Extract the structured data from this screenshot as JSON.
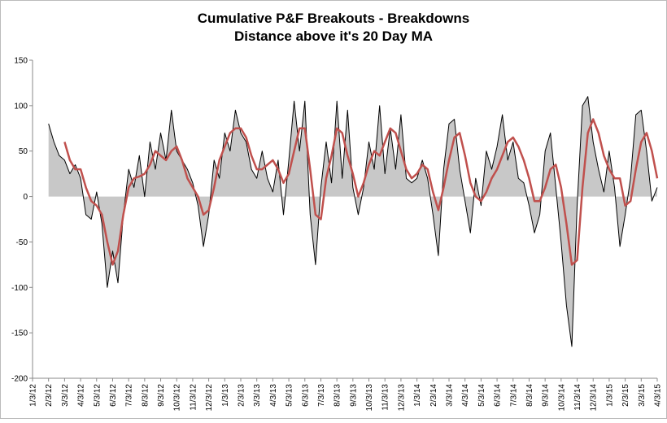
{
  "chart_data": {
    "type": "area-line",
    "title": "Cumulative P&F Breakouts - Breakdowns",
    "subtitle": "Distance above it's 20 Day MA",
    "categories": [
      "1/3/12",
      null,
      null,
      "2/3/12",
      null,
      null,
      "3/3/12",
      null,
      null,
      "4/3/12",
      null,
      null,
      "5/3/12",
      null,
      null,
      "6/3/12",
      null,
      null,
      "7/3/12",
      null,
      null,
      "8/3/12",
      null,
      null,
      "9/3/12",
      null,
      null,
      "10/3/12",
      null,
      null,
      "11/3/12",
      null,
      null,
      "12/3/12",
      null,
      null,
      "1/3/13",
      null,
      null,
      "2/3/13",
      null,
      null,
      "3/3/13",
      null,
      null,
      "4/3/13",
      null,
      null,
      "5/3/13",
      null,
      null,
      "6/3/13",
      null,
      null,
      "7/3/13",
      null,
      null,
      "8/3/13",
      null,
      null,
      "9/3/13",
      null,
      null,
      "10/3/13",
      null,
      null,
      "11/3/13",
      null,
      null,
      "12/3/13",
      null,
      null,
      "1/3/14",
      null,
      null,
      "2/3/14",
      null,
      null,
      "3/3/14",
      null,
      null,
      "4/3/14",
      null,
      null,
      "5/3/14",
      null,
      null,
      "6/3/14",
      null,
      null,
      "7/3/14",
      null,
      null,
      "8/3/14",
      null,
      null,
      "9/3/14",
      null,
      null,
      "10/3/14",
      null,
      null,
      "11/3/14",
      null,
      null,
      "12/3/14",
      null,
      null,
      "1/3/15",
      null,
      null,
      "2/3/15",
      null,
      null,
      "3/3/15",
      null,
      null,
      "4/3/15"
    ],
    "series": [
      {
        "color": "#000000",
        "fill": "#c8c8c8",
        "values": [
          null,
          null,
          null,
          80,
          60,
          45,
          40,
          25,
          35,
          20,
          -20,
          -25,
          5,
          -30,
          -100,
          -60,
          -95,
          -20,
          30,
          10,
          45,
          0,
          60,
          30,
          70,
          40,
          95,
          50,
          40,
          30,
          15,
          -10,
          -55,
          -20,
          40,
          20,
          70,
          50,
          95,
          70,
          60,
          30,
          20,
          50,
          20,
          5,
          40,
          -20,
          40,
          105,
          50,
          105,
          -20,
          -75,
          10,
          60,
          15,
          105,
          20,
          95,
          10,
          -20,
          10,
          60,
          30,
          100,
          25,
          75,
          30,
          90,
          20,
          15,
          20,
          40,
          20,
          -20,
          -65,
          30,
          80,
          85,
          30,
          -5,
          -40,
          20,
          -10,
          50,
          30,
          55,
          90,
          40,
          60,
          20,
          15,
          -10,
          -40,
          -20,
          50,
          70,
          10,
          -50,
          -120,
          -165,
          -10,
          100,
          110,
          60,
          30,
          5,
          50,
          10,
          -55,
          -20,
          20,
          90,
          95,
          50,
          -5,
          10
        ]
      },
      {
        "color": "#c0504d",
        "values": [
          null,
          null,
          null,
          null,
          null,
          null,
          60,
          40,
          30,
          30,
          10,
          -5,
          -10,
          -20,
          -50,
          -75,
          -60,
          -20,
          10,
          20,
          22,
          25,
          35,
          50,
          45,
          40,
          50,
          55,
          40,
          20,
          10,
          0,
          -20,
          -15,
          10,
          40,
          55,
          70,
          75,
          75,
          65,
          45,
          30,
          30,
          35,
          40,
          30,
          15,
          25,
          50,
          75,
          75,
          30,
          -20,
          -25,
          20,
          45,
          75,
          70,
          45,
          25,
          0,
          15,
          35,
          50,
          45,
          60,
          75,
          70,
          50,
          30,
          20,
          25,
          35,
          30,
          5,
          -15,
          10,
          40,
          65,
          70,
          45,
          15,
          0,
          -5,
          5,
          20,
          30,
          45,
          60,
          65,
          55,
          40,
          20,
          -5,
          -5,
          10,
          30,
          35,
          10,
          -30,
          -75,
          -70,
          10,
          70,
          85,
          70,
          45,
          30,
          20,
          20,
          -10,
          -5,
          30,
          60,
          70,
          50,
          20
        ]
      }
    ],
    "ylim": [
      -200,
      150
    ],
    "yticks": [
      -200,
      -150,
      -100,
      -50,
      0,
      50,
      100,
      150
    ]
  }
}
